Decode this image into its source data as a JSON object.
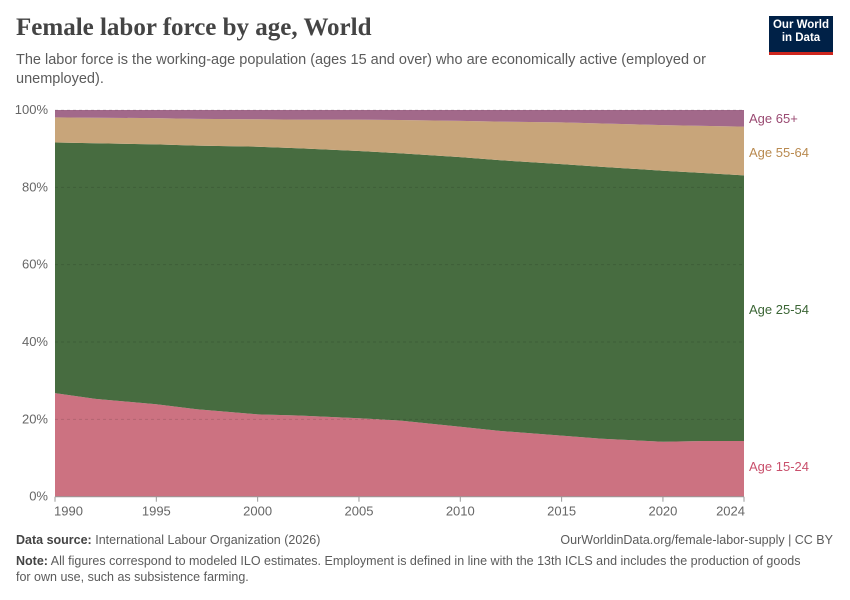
{
  "header": {
    "title": "Female labor force by age, World",
    "subtitle": "The labor force is the working-age population (ages 15 and over) who are economically active (employed or unemployed).",
    "logo_line1": "Our World",
    "logo_line2": "in Data"
  },
  "footer": {
    "source_label": "Data source:",
    "source": "International Labour Organization (2026)",
    "url": "OurWorldinData.org/female-labor-supply | CC BY",
    "note_label": "Note:",
    "note": "All figures correspond to modeled ILO estimates. Employment is defined in line with the 13th ICLS and includes the production of goods for own use, such as subsistence farming."
  },
  "chart_data": {
    "type": "area",
    "stacked": true,
    "relative": true,
    "x": [
      1990,
      1992,
      1995,
      1997,
      2000,
      2002,
      2005,
      2007,
      2010,
      2012,
      2015,
      2017,
      2020,
      2022,
      2024
    ],
    "xlim": [
      1990,
      2024
    ],
    "ylim": [
      0,
      100
    ],
    "x_ticks": [
      "1990",
      "1995",
      "2000",
      "2005",
      "2010",
      "2015",
      "2020",
      "2024"
    ],
    "y_ticks": [
      "0%",
      "20%",
      "40%",
      "60%",
      "80%",
      "100%"
    ],
    "grid": "horizontal dashed",
    "legend": "right, inline labels",
    "series": [
      {
        "name": "Age 15-24",
        "color": "#cc7281",
        "label_color": "#c9506c",
        "values": [
          26.8,
          25.3,
          23.9,
          22.6,
          21.3,
          21.0,
          20.3,
          19.7,
          18.1,
          17.0,
          15.8,
          15.0,
          14.2,
          14.4,
          14.4
        ]
      },
      {
        "name": "Age 25-54",
        "color": "#476c40",
        "label_color": "#3b6535",
        "values": [
          64.8,
          66.1,
          67.2,
          68.2,
          69.2,
          69.1,
          69.1,
          69.1,
          69.7,
          70.0,
          70.2,
          70.3,
          70.1,
          69.3,
          68.7
        ]
      },
      {
        "name": "Age 55-64",
        "color": "#c8a57a",
        "label_color": "#b98a50",
        "values": [
          6.5,
          6.6,
          6.8,
          6.9,
          7.1,
          7.4,
          8.1,
          8.6,
          9.4,
          10.0,
          10.8,
          11.2,
          11.8,
          12.2,
          12.6
        ]
      },
      {
        "name": "Age 65+",
        "color": "#a2698a",
        "label_color": "#9a4a72",
        "values": [
          1.9,
          2.0,
          2.1,
          2.3,
          2.4,
          2.5,
          2.5,
          2.6,
          2.8,
          3.0,
          3.2,
          3.5,
          3.9,
          4.1,
          4.3
        ]
      }
    ]
  }
}
